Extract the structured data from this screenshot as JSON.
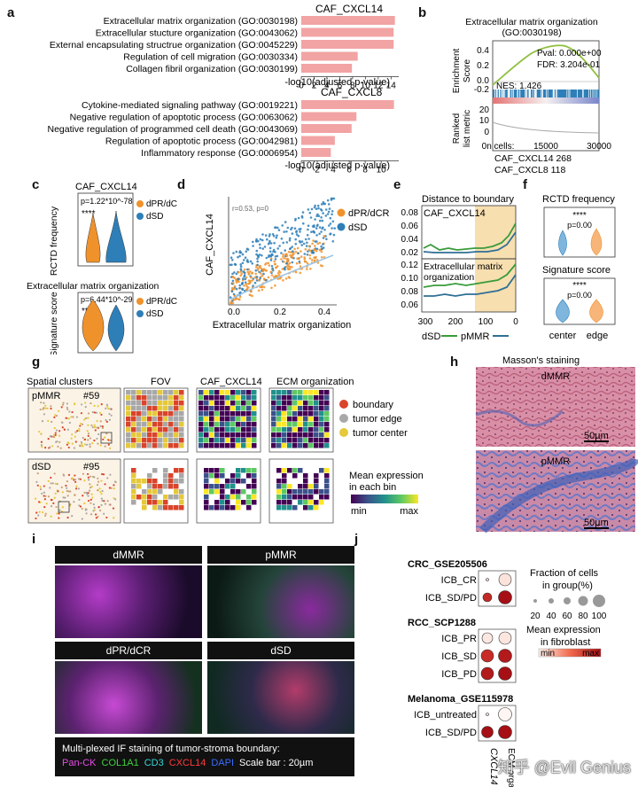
{
  "panels": {
    "a": "a",
    "b": "b",
    "c": "c",
    "d": "d",
    "e": "e",
    "f": "f",
    "g": "g",
    "h": "h",
    "i": "i",
    "j": "j"
  },
  "chart_data": [
    {
      "type": "bar",
      "id": "a1",
      "title": "CAF_CXCL14",
      "xlabel": "-log10(adjusted p-value)",
      "categories": [
        "Extracellular matrix organization (GO:0030198)",
        "Extracellular stucture organization (GO:0043062)",
        "External encapsulating structrue organization (GO:0045229)",
        "Regulation of cell migration (GO:0030334)",
        "Collagen fibril organization (GO:0030199)"
      ],
      "values": [
        14.6,
        14.4,
        14.4,
        8.8,
        7.9
      ],
      "xticks": [
        "0",
        "2",
        "4",
        "6",
        "8",
        "10",
        "12",
        "14"
      ],
      "xlim": [
        0,
        15.2
      ]
    },
    {
      "type": "bar",
      "id": "a2",
      "title": "CAF_CXCL8",
      "xlabel": "-log10(adjusted p-value)",
      "categories": [
        "Cytokine-mediated signaling pathway (GO:0019221)",
        "Negative regulation of apoptotic process (GO:0063062)",
        "Negative regulation of programmed cell death (GO:0043069)",
        "Regulation of apoptotic process (GO:0042981)",
        "Inflammatory response (GO:0006954)"
      ],
      "values": [
        11.6,
        6.9,
        6.3,
        4.2,
        3.7
      ],
      "xticks": [
        "0",
        "2",
        "4",
        "6",
        "8",
        "10"
      ],
      "xlim": [
        0,
        12.2
      ]
    }
  ],
  "b": {
    "title1": "Extracellular matrix organization",
    "title2": "(GO:0030198)",
    "pval": "Pval: 0.000e+00",
    "fdr": "FDR: 3.204e-01",
    "nes": "NES: 1.426",
    "ylabel_top1": "Enrichment",
    "ylabel_top2": "Score",
    "ylabel_bot1": "Ranked",
    "ylabel_bot2": "list metric",
    "yticks_top": [
      "0.4",
      "0.2",
      "0.0",
      "-0.2"
    ],
    "yticks_bot": [
      "20",
      "10",
      "0"
    ],
    "xticks": [
      "0n cells:",
      "15000",
      "30000"
    ],
    "cells1": "CAF_CXCL14 268",
    "cells2": "CAF_CXCL8  118"
  },
  "c": {
    "title": "CAF_CXCL14",
    "ylabel1": "RCTD frequency",
    "p1": "p=1.22*10^-78",
    "stars1": "****",
    "title2": "Extracellular matrix organization",
    "ylabel2": "Signature score",
    "p2": "p=6.44*10^-29",
    "stars2": "****",
    "legend": [
      "dPR/dCR",
      "dSD"
    ],
    "colors": [
      "#f0922b",
      "#2e7fb8"
    ]
  },
  "d": {
    "ylabel": "CAF_CXCL14",
    "xlabel": "Extracellular matrix organization",
    "annot": "r=0.53, p=0",
    "xticks": [
      "0.0",
      "0.2",
      "0.4"
    ],
    "legend": [
      "dPR/dCR",
      "dSD"
    ]
  },
  "e": {
    "title": "Distance to boundary",
    "sub1": "CAF_CXCL14",
    "sub2a": "Extracellular matrix",
    "sub2b": "organization",
    "yticks1": [
      "0.08",
      "0.06",
      "0.04",
      "0.02"
    ],
    "yticks2": [
      "0.12",
      "0.10",
      "0.08",
      "0.06"
    ],
    "xticks": [
      "300",
      "200",
      "100",
      "0"
    ],
    "legend1": "dSD",
    "legend2": "pMMR"
  },
  "f": {
    "title1": "RCTD frequency",
    "stars1": "****",
    "p1": "p=0.00",
    "title2": "Signature score",
    "stars2": "****",
    "p2": "p=0.00",
    "xlabels": [
      "center",
      "edge"
    ]
  },
  "g": {
    "col1": "Spatial clusters",
    "col2": "FOV",
    "col3": "CAF_CXCL14",
    "col4": "ECM organization",
    "row1a": "pMMR",
    "row1b": "#59",
    "row2a": "dSD",
    "row2b": "#95",
    "legend": [
      "boundary",
      "tumor edge",
      "tumor center"
    ],
    "legend_colors": [
      "#d9442b",
      "#a8a8a8",
      "#e5c93a"
    ],
    "scale_title1": "Mean expression",
    "scale_title2": "in each bin",
    "scale_min": "min",
    "scale_max": "max"
  },
  "h": {
    "title": "Masson's staining",
    "label1": "dMMR",
    "label2": "pMMR",
    "scale": "50µm"
  },
  "i": {
    "labels": [
      "dMMR",
      "pMMR",
      "dPR/dCR",
      "dSD"
    ],
    "caption": "Multi-plexed IF staining of tumor-stroma boundary:",
    "legend": [
      {
        "text": "Pan-CK",
        "color": "#e84be8"
      },
      {
        "text": "COL1A1",
        "color": "#3fd23f"
      },
      {
        "text": "CD3",
        "color": "#38d6d6"
      },
      {
        "text": "CXCL14",
        "color": "#ff3b3b"
      },
      {
        "text": "DAPI",
        "color": "#3b6cff"
      },
      {
        "text": "Scale bar : 20µm",
        "color": "#ffffff"
      }
    ]
  },
  "j": {
    "datasets": [
      {
        "name": "CRC_GSE205506",
        "rows": [
          "ICB_CR",
          "ICB_SD/PD"
        ]
      },
      {
        "name": "RCC_SCP1288",
        "rows": [
          "ICB_PR",
          "ICB_SD",
          "ICB_PD"
        ]
      },
      {
        "name": "Melanoma_GSE115978",
        "rows": [
          "ICB_untreated",
          "ICB_SD/PD"
        ]
      }
    ],
    "cols": [
      "CXCL14",
      "ECM organization"
    ],
    "size_title1": "Fraction of cells",
    "size_title2": "in group(%)",
    "size_ticks": [
      "20",
      "40",
      "60",
      "80",
      "100"
    ],
    "color_title1": "Mean expression",
    "color_title2": "in fibroblast",
    "color_min": "min",
    "color_max": "max"
  },
  "watermark": "知乎 @Evil Genius"
}
